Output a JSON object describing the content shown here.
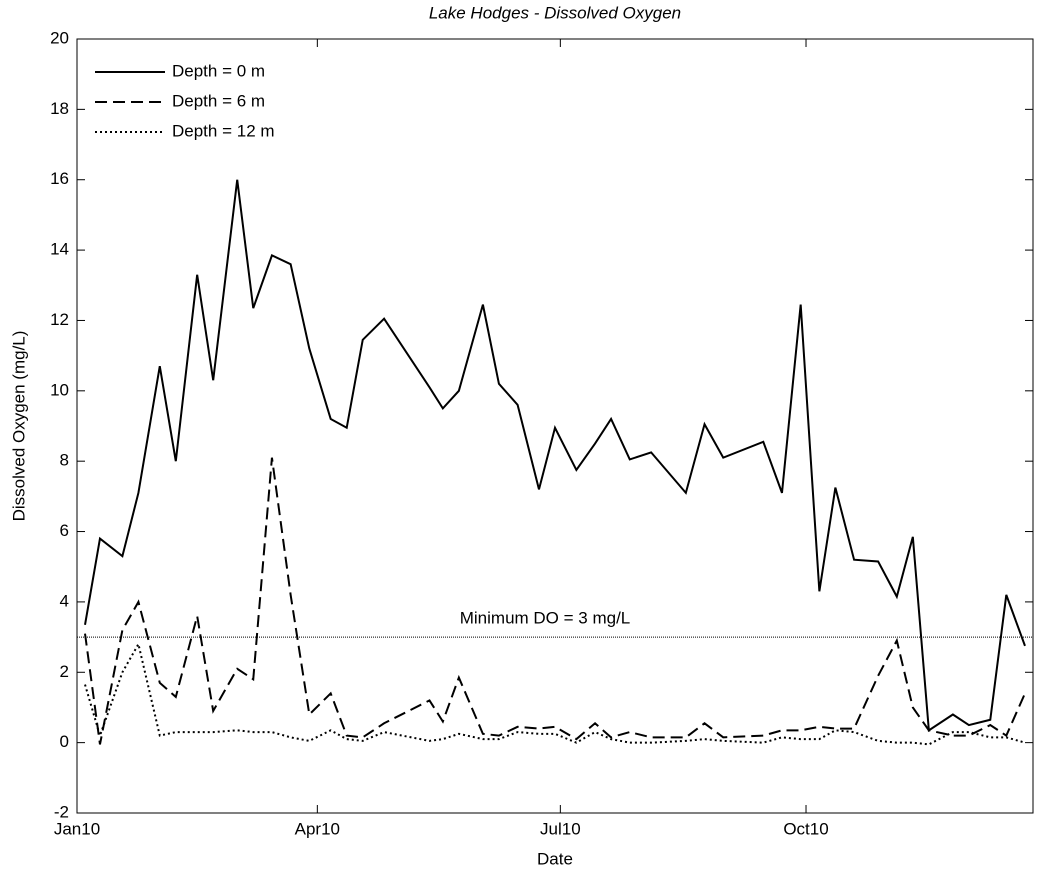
{
  "chart_data": {
    "type": "line",
    "title": "Lake Hodges - Dissolved Oxygen",
    "xlabel": "Date",
    "ylabel": "Dissolved Oxygen (mg/L)",
    "x": [
      3,
      8.6,
      17,
      23,
      31,
      37,
      45,
      51,
      60,
      66,
      73,
      80,
      87,
      95,
      101,
      107,
      115,
      132,
      137,
      143,
      152,
      158,
      165,
      173,
      179,
      187,
      194,
      200,
      207,
      215,
      228,
      235,
      242,
      257,
      264,
      271,
      278,
      284,
      291,
      300,
      307,
      313,
      319,
      328,
      334,
      342,
      348,
      355
    ],
    "series": [
      {
        "name": "Depth = 0 m",
        "color": "#000000",
        "dash": "solid",
        "values": [
          3.35,
          5.8,
          5.3,
          7.1,
          10.7,
          8.0,
          13.3,
          10.3,
          16.0,
          12.35,
          13.85,
          13.6,
          11.2,
          9.2,
          8.95,
          11.45,
          12.05,
          10.1,
          9.5,
          10.0,
          12.45,
          10.2,
          9.6,
          7.2,
          8.95,
          7.75,
          8.5,
          9.2,
          8.05,
          8.25,
          7.1,
          9.05,
          8.1,
          8.55,
          7.1,
          12.45,
          4.3,
          7.25,
          5.2,
          5.15,
          4.15,
          5.85,
          0.35,
          0.8,
          0.5,
          0.65,
          4.2,
          2.75
        ]
      },
      {
        "name": "Depth = 6 m",
        "color": "#000000",
        "dash": "dashed",
        "values": [
          3.1,
          -0.05,
          3.2,
          4.0,
          1.7,
          1.3,
          3.6,
          0.9,
          2.1,
          1.8,
          8.1,
          4.2,
          0.8,
          1.4,
          0.2,
          0.15,
          0.55,
          1.2,
          0.6,
          1.85,
          0.25,
          0.2,
          0.45,
          0.4,
          0.45,
          0.1,
          0.55,
          0.15,
          0.3,
          0.15,
          0.15,
          0.55,
          0.15,
          0.2,
          0.35,
          0.35,
          0.45,
          0.4,
          0.4,
          1.9,
          2.9,
          1.0,
          0.35,
          0.2,
          0.2,
          0.5,
          0.2,
          1.4
        ]
      },
      {
        "name": "Depth = 12 m",
        "color": "#000000",
        "dash": "dotted",
        "values": [
          1.65,
          0.2,
          2.0,
          2.8,
          0.2,
          0.3,
          0.3,
          0.3,
          0.35,
          0.3,
          0.3,
          0.15,
          0.05,
          0.35,
          0.1,
          0.05,
          0.3,
          0.05,
          0.1,
          0.25,
          0.1,
          0.1,
          0.3,
          0.25,
          0.25,
          0.0,
          0.3,
          0.1,
          0.0,
          0.0,
          0.05,
          0.1,
          0.05,
          0.0,
          0.15,
          0.1,
          0.1,
          0.35,
          0.3,
          0.05,
          0.0,
          0.0,
          -0.05,
          0.3,
          0.3,
          0.15,
          0.15,
          0.0
        ]
      }
    ],
    "hline": {
      "value": 3,
      "label": "Minimum DO = 3 mg/L"
    },
    "xlim": [
      0,
      358
    ],
    "xticks": [
      {
        "value": 0,
        "label": "Jan10"
      },
      {
        "value": 90,
        "label": "Apr10"
      },
      {
        "value": 181,
        "label": "Jul10"
      },
      {
        "value": 273,
        "label": "Oct10"
      }
    ],
    "ylim": [
      -2,
      20
    ],
    "yticks": [
      -2,
      0,
      2,
      4,
      6,
      8,
      10,
      12,
      14,
      16,
      18,
      20
    ],
    "grid": false,
    "legend": "upper-left"
  }
}
